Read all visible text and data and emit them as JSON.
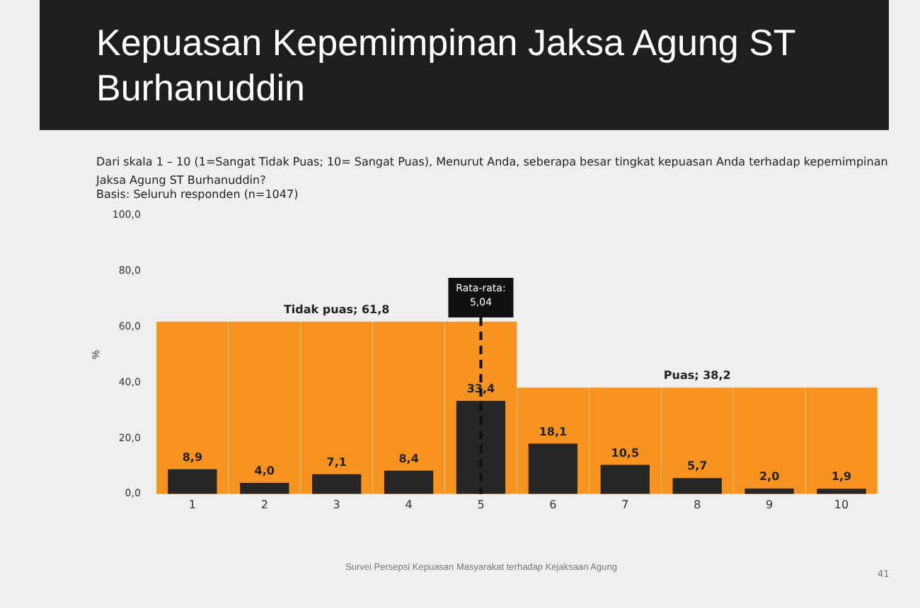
{
  "chart_data": {
    "type": "bar",
    "title": "Kepuasan Kepemimpinan Jaksa Agung ST Burhanuddin",
    "subtitle": "Dari skala 1 – 10 (1=Sangat Tidak Puas; 10= Sangat Puas), Menurut Anda, seberapa besar tingkat kepuasan Anda terhadap kepemimpinan Jaksa Agung ST Burhanuddin?",
    "ylabel": "%",
    "categories": [
      "1",
      "2",
      "3",
      "4",
      "5",
      "6",
      "7",
      "8",
      "9",
      "10"
    ],
    "series": [
      {
        "color": "#f7931e",
        "values": [
          61.8,
          61.8,
          61.8,
          61.8,
          61.8,
          null,
          null,
          null,
          null,
          null
        ],
        "value_labels": [
          null,
          null,
          "Tidak puas; 61,8",
          null,
          null,
          null,
          null,
          null,
          null,
          null
        ]
      },
      {
        "color": "#f7931e",
        "values": [
          null,
          null,
          null,
          null,
          null,
          38.2,
          38.2,
          38.2,
          38.2,
          38.2
        ],
        "value_labels": [
          null,
          null,
          null,
          null,
          null,
          null,
          null,
          "Puas; 38,2",
          null,
          null
        ]
      },
      {
        "color": "#262626",
        "values": [
          8.9,
          4.0,
          7.1,
          8.4,
          33.4,
          18.1,
          10.5,
          5.7,
          2.0,
          1.9
        ],
        "value_labels": [
          "8,9",
          "4,0",
          "7,1",
          "8,4",
          "33,4",
          "18,1",
          "10,5",
          "5,7",
          "2,0",
          "1,9"
        ]
      }
    ],
    "ylim": [
      0,
      100
    ],
    "yticks": [
      {
        "value": 0,
        "label": "0,0"
      },
      {
        "value": 20,
        "label": "20,0"
      },
      {
        "value": 40,
        "label": "40,0"
      },
      {
        "value": 60,
        "label": "60,0"
      },
      {
        "value": 80,
        "label": "80,0"
      },
      {
        "value": 100,
        "label": "100,0"
      }
    ],
    "ref_lines": [
      {
        "axis": "x",
        "value": "5",
        "label": "Rata-rata:\n5,04",
        "color": "#111111",
        "line_style": "dashed"
      }
    ],
    "grid": false,
    "legend": false,
    "annotations": [
      "Basis: Seluruh responden (n=1047)",
      "Survei Persepsi Kepuasan Masyarakat terhadap Kejaksaan Agung",
      "41"
    ]
  }
}
